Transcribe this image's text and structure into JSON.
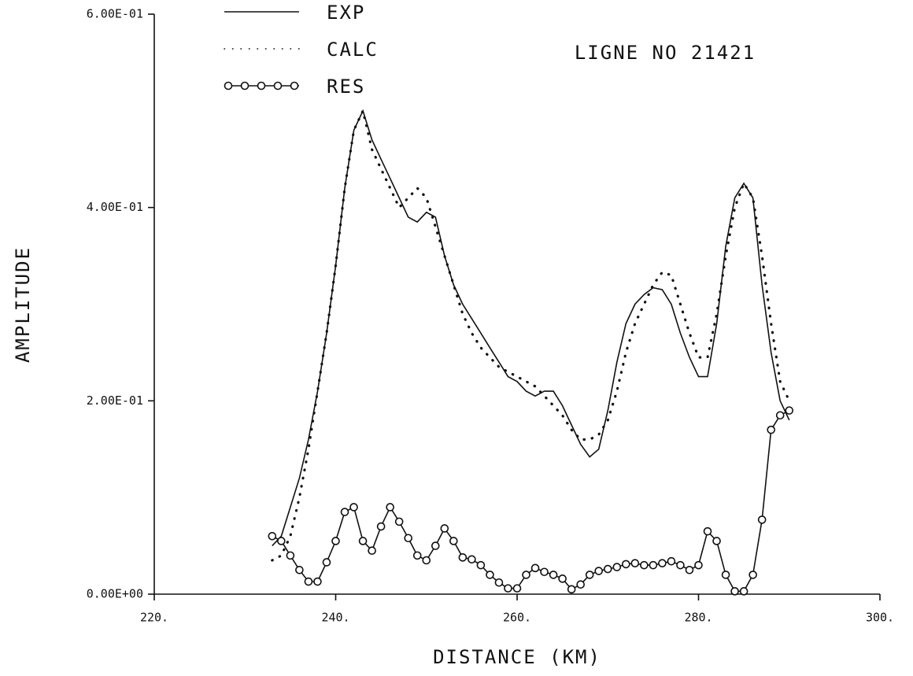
{
  "chart_data": {
    "type": "line",
    "title": "LIGNE NO 21421",
    "x_label": "DISTANCE (KM)",
    "y_label": "AMPLITUDE",
    "xlim": [
      220,
      300
    ],
    "ylim": [
      0,
      0.6
    ],
    "xticks": [
      {
        "value": 220,
        "label": "220."
      },
      {
        "value": 240,
        "label": "240."
      },
      {
        "value": 260,
        "label": "260."
      },
      {
        "value": 280,
        "label": "280."
      },
      {
        "value": 300,
        "label": "300."
      }
    ],
    "yticks": [
      {
        "value": 0,
        "label": "0.00E+00"
      },
      {
        "value": 0.2,
        "label": "2.00E-01"
      },
      {
        "value": 0.4,
        "label": "4.00E-01"
      },
      {
        "value": 0.6,
        "label": "6.00E-01"
      }
    ],
    "x": [
      233,
      234,
      235,
      236,
      237,
      238,
      239,
      240,
      241,
      242,
      243,
      244,
      245,
      246,
      247,
      248,
      249,
      250,
      251,
      252,
      253,
      254,
      255,
      256,
      257,
      258,
      259,
      260,
      261,
      262,
      263,
      264,
      265,
      266,
      267,
      268,
      269,
      270,
      271,
      272,
      273,
      274,
      275,
      276,
      277,
      278,
      279,
      280,
      281,
      282,
      283,
      284,
      285,
      286,
      287,
      288,
      289,
      290
    ],
    "series": [
      {
        "name": "EXP",
        "color": "#111111",
        "line_style": "solid",
        "values": [
          0.05,
          0.06,
          0.09,
          0.12,
          0.16,
          0.21,
          0.27,
          0.34,
          0.42,
          0.48,
          0.5,
          0.47,
          0.45,
          0.43,
          0.41,
          0.39,
          0.385,
          0.395,
          0.39,
          0.35,
          0.32,
          0.3,
          0.285,
          0.27,
          0.255,
          0.24,
          0.225,
          0.22,
          0.21,
          0.205,
          0.21,
          0.21,
          0.195,
          0.175,
          0.155,
          0.142,
          0.15,
          0.19,
          0.24,
          0.28,
          0.3,
          0.31,
          0.317,
          0.315,
          0.3,
          0.27,
          0.245,
          0.225,
          0.225,
          0.28,
          0.36,
          0.41,
          0.425,
          0.41,
          0.32,
          0.25,
          0.2,
          0.18
        ]
      },
      {
        "name": "CALC",
        "color": "#111111",
        "line_style": "dotted",
        "values": [
          0.035,
          0.04,
          0.06,
          0.1,
          0.15,
          0.21,
          0.27,
          0.34,
          0.42,
          0.48,
          0.5,
          0.46,
          0.44,
          0.42,
          0.4,
          0.41,
          0.42,
          0.41,
          0.38,
          0.35,
          0.32,
          0.29,
          0.27,
          0.255,
          0.245,
          0.235,
          0.23,
          0.225,
          0.22,
          0.215,
          0.205,
          0.195,
          0.185,
          0.17,
          0.16,
          0.16,
          0.165,
          0.18,
          0.21,
          0.25,
          0.28,
          0.3,
          0.32,
          0.333,
          0.33,
          0.3,
          0.27,
          0.245,
          0.245,
          0.29,
          0.35,
          0.4,
          0.425,
          0.41,
          0.35,
          0.28,
          0.22,
          0.2
        ]
      },
      {
        "name": "RES",
        "color": "#111111",
        "line_style": "circles",
        "values": [
          0.06,
          0.055,
          0.04,
          0.025,
          0.013,
          0.013,
          0.033,
          0.055,
          0.085,
          0.09,
          0.055,
          0.045,
          0.07,
          0.09,
          0.075,
          0.058,
          0.04,
          0.035,
          0.05,
          0.068,
          0.055,
          0.038,
          0.036,
          0.03,
          0.02,
          0.012,
          0.006,
          0.006,
          0.02,
          0.027,
          0.023,
          0.02,
          0.016,
          0.005,
          0.01,
          0.02,
          0.024,
          0.026,
          0.028,
          0.031,
          0.032,
          0.03,
          0.03,
          0.032,
          0.034,
          0.03,
          0.025,
          0.03,
          0.065,
          0.055,
          0.02,
          0.003,
          0.003,
          0.02,
          0.077,
          0.17,
          0.185,
          0.19
        ]
      }
    ]
  }
}
